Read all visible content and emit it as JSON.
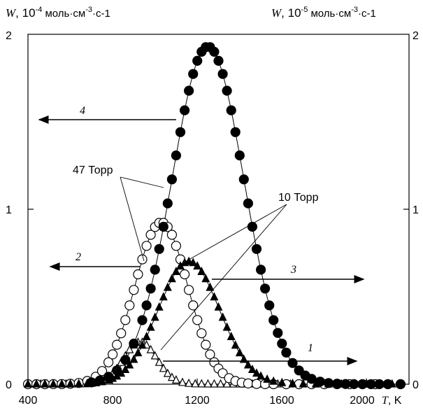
{
  "chart_data": {
    "type": "scatter",
    "title": "",
    "xlabel": {
      "symbol": "T",
      "unit": ", K"
    },
    "ylabel_left": {
      "symbol": "W",
      "text": ", 10",
      "exp": "-4",
      "unit": " моль·см",
      "unit_exp": "-3",
      "unit_tail": "·с-1"
    },
    "ylabel_right": {
      "symbol": "W",
      "text": ", 10",
      "exp": "-5",
      "unit": " моль·см",
      "unit_exp": "-3",
      "unit_tail": "·с-1"
    },
    "xlim": [
      400,
      2200
    ],
    "ylim": [
      0,
      2
    ],
    "xticks": [
      400,
      800,
      1200,
      1600,
      2000
    ],
    "xtick_labels": [
      "400",
      "800",
      "1200",
      "1600",
      "2000"
    ],
    "yticks": [
      0,
      1,
      2
    ],
    "ytick_labels_left": [
      "0",
      "1",
      "2"
    ],
    "ytick_labels_right": [
      "0",
      "1",
      "2"
    ],
    "pressure_labels": [
      "47 Торр",
      "10 Торр"
    ],
    "series": [
      {
        "name": "1",
        "marker": "open-triangle",
        "axis": "right",
        "peak_x": 930,
        "peak_y": 0.24,
        "sigma": 78,
        "x": [
          400,
          430,
          460,
          490,
          520,
          550,
          580,
          610,
          640,
          670,
          700,
          720,
          740,
          760,
          780,
          800,
          820,
          840,
          860,
          880,
          900,
          920,
          940,
          960,
          980,
          1000,
          1020,
          1040,
          1060,
          1080,
          1100,
          1130,
          1160,
          1190,
          1220,
          1250,
          1280,
          1310,
          1340,
          1370,
          1400,
          1430,
          1460,
          1490,
          1520,
          1550,
          1580,
          1640,
          1700,
          1760,
          1820,
          1880,
          1940,
          2000,
          2060
        ]
      },
      {
        "name": "2",
        "marker": "open-circle",
        "axis": "left",
        "peak_x": 1030,
        "peak_y": 0.925,
        "sigma": 125,
        "x": [
          400,
          440,
          480,
          520,
          560,
          600,
          640,
          680,
          720,
          750,
          780,
          800,
          820,
          840,
          860,
          880,
          900,
          920,
          940,
          960,
          980,
          1000,
          1020,
          1040,
          1060,
          1080,
          1100,
          1120,
          1140,
          1160,
          1180,
          1200,
          1220,
          1240,
          1260,
          1280,
          1300,
          1320,
          1350,
          1380,
          1410,
          1440,
          1480,
          1520,
          1560,
          1620,
          1680,
          1740,
          1800,
          1860,
          1920,
          1980,
          2040,
          2100,
          2160
        ]
      },
      {
        "name": "3",
        "marker": "filled-triangle",
        "axis": "right",
        "peak_x": 1160,
        "peak_y": 0.7,
        "sigma": 145,
        "x": [
          400,
          440,
          480,
          520,
          560,
          600,
          640,
          680,
          720,
          750,
          780,
          800,
          820,
          840,
          860,
          880,
          900,
          920,
          940,
          960,
          980,
          1000,
          1020,
          1040,
          1060,
          1080,
          1100,
          1120,
          1140,
          1160,
          1180,
          1200,
          1220,
          1240,
          1260,
          1280,
          1300,
          1320,
          1340,
          1360,
          1380,
          1400,
          1420,
          1440,
          1460,
          1480,
          1500,
          1530,
          1560,
          1600,
          1650,
          1700,
          1760,
          1820,
          1880,
          1940,
          2000,
          2060,
          2120,
          2160
        ]
      },
      {
        "name": "4",
        "marker": "filled-circle",
        "axis": "left",
        "peak_x": 1250,
        "peak_y": 1.93,
        "sigma": 170,
        "x": [
          700,
          740,
          780,
          820,
          860,
          900,
          940,
          960,
          980,
          1000,
          1020,
          1040,
          1060,
          1080,
          1100,
          1120,
          1140,
          1160,
          1180,
          1200,
          1220,
          1240,
          1260,
          1280,
          1300,
          1320,
          1340,
          1360,
          1380,
          1400,
          1420,
          1440,
          1460,
          1480,
          1500,
          1520,
          1540,
          1560,
          1580,
          1600,
          1620,
          1650,
          1680,
          1710,
          1740,
          1780,
          1820,
          1860,
          1900,
          1940,
          1980,
          2020,
          2060,
          2100,
          2160
        ]
      }
    ],
    "arrow_labels": [
      "4",
      "2",
      "3",
      "1"
    ],
    "arrow_directions": [
      "left",
      "left",
      "right",
      "right"
    ],
    "grid": false,
    "legend": "none"
  }
}
